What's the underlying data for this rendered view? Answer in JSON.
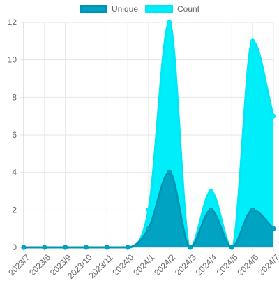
{
  "chart_data": {
    "type": "area",
    "title": "",
    "xlabel": "",
    "ylabel": "",
    "categories": [
      "2023/7",
      "2023/8",
      "2023/9",
      "2023/10",
      "2023/11",
      "2024/0",
      "2024/1",
      "2024/2",
      "2024/3",
      "2024/4",
      "2024/5",
      "2024/6",
      "2024/7"
    ],
    "ylim": [
      0,
      12
    ],
    "yticks": [
      0,
      2,
      4,
      6,
      8,
      10,
      12
    ],
    "grid": true,
    "legend_position": "top-center",
    "stacked": false,
    "series": [
      {
        "name": "Unique",
        "values": [
          0,
          0,
          0,
          0,
          0,
          0,
          1,
          4,
          0,
          2,
          0,
          2,
          1
        ],
        "fill_color": "#00a3c2",
        "line_color": "#0094b3"
      },
      {
        "name": "Count",
        "values": [
          0,
          0,
          0,
          0,
          0,
          0,
          2,
          12,
          0,
          3,
          0,
          11,
          7
        ],
        "fill_color": "#00eef9",
        "line_color": "#00e8f5"
      }
    ]
  }
}
